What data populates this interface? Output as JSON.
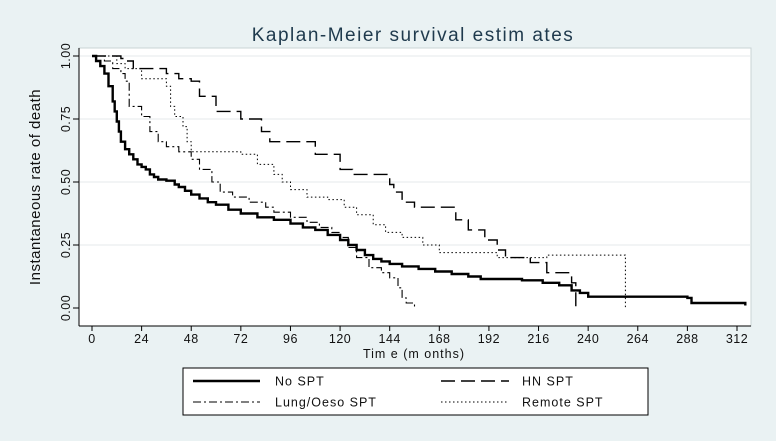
{
  "chart_data": {
    "type": "line",
    "step": true,
    "title": "Kaplan-Meier survival estim ates",
    "xlabel": "Tim e (m onths)",
    "ylabel": "Instantaneous rate of death",
    "xlim": [
      0,
      318
    ],
    "ylim": [
      0,
      1
    ],
    "xticks": [
      0,
      24,
      48,
      72,
      96,
      120,
      144,
      168,
      192,
      216,
      240,
      264,
      288,
      312
    ],
    "yticks": [
      0,
      0.25,
      0.5,
      0.75,
      1
    ],
    "ytick_labels": [
      "0.00",
      "0.25",
      "0.50",
      "0.75",
      "1.00"
    ],
    "grid": "horizontal",
    "legend_position": "bottom",
    "series": [
      {
        "name": "No SPT",
        "style": "solid",
        "points": [
          [
            0,
            1
          ],
          [
            2,
            0.98
          ],
          [
            4,
            0.96
          ],
          [
            6,
            0.93
          ],
          [
            8,
            0.88
          ],
          [
            10,
            0.82
          ],
          [
            11,
            0.78
          ],
          [
            12,
            0.74
          ],
          [
            13,
            0.7
          ],
          [
            14,
            0.66
          ],
          [
            16,
            0.63
          ],
          [
            18,
            0.61
          ],
          [
            20,
            0.59
          ],
          [
            22,
            0.57
          ],
          [
            24,
            0.56
          ],
          [
            26,
            0.55
          ],
          [
            28,
            0.53
          ],
          [
            30,
            0.52
          ],
          [
            32,
            0.51
          ],
          [
            36,
            0.505
          ],
          [
            40,
            0.49
          ],
          [
            42,
            0.48
          ],
          [
            45,
            0.465
          ],
          [
            48,
            0.45
          ],
          [
            52,
            0.435
          ],
          [
            56,
            0.42
          ],
          [
            60,
            0.41
          ],
          [
            66,
            0.39
          ],
          [
            72,
            0.375
          ],
          [
            80,
            0.36
          ],
          [
            88,
            0.35
          ],
          [
            96,
            0.335
          ],
          [
            102,
            0.32
          ],
          [
            108,
            0.31
          ],
          [
            114,
            0.29
          ],
          [
            120,
            0.27
          ],
          [
            124,
            0.25
          ],
          [
            128,
            0.23
          ],
          [
            132,
            0.21
          ],
          [
            136,
            0.195
          ],
          [
            140,
            0.185
          ],
          [
            144,
            0.175
          ],
          [
            150,
            0.165
          ],
          [
            158,
            0.155
          ],
          [
            166,
            0.145
          ],
          [
            174,
            0.135
          ],
          [
            182,
            0.125
          ],
          [
            188,
            0.115
          ],
          [
            208,
            0.11
          ],
          [
            218,
            0.1
          ],
          [
            226,
            0.09
          ],
          [
            232,
            0.07
          ],
          [
            236,
            0.06
          ],
          [
            240,
            0.045
          ],
          [
            288,
            0.04
          ],
          [
            290,
            0.02
          ],
          [
            316,
            0.01
          ]
        ]
      },
      {
        "name": "HN SPT",
        "style": "longdash",
        "points": [
          [
            0,
            1
          ],
          [
            14,
            0.99
          ],
          [
            16,
            0.98
          ],
          [
            20,
            0.95
          ],
          [
            36,
            0.93
          ],
          [
            42,
            0.91
          ],
          [
            48,
            0.9
          ],
          [
            52,
            0.84
          ],
          [
            60,
            0.78
          ],
          [
            72,
            0.75
          ],
          [
            82,
            0.7
          ],
          [
            86,
            0.66
          ],
          [
            108,
            0.61
          ],
          [
            120,
            0.55
          ],
          [
            126,
            0.53
          ],
          [
            144,
            0.49
          ],
          [
            146,
            0.46
          ],
          [
            150,
            0.42
          ],
          [
            156,
            0.4
          ],
          [
            176,
            0.35
          ],
          [
            182,
            0.31
          ],
          [
            190,
            0.27
          ],
          [
            196,
            0.23
          ],
          [
            200,
            0.2
          ],
          [
            212,
            0.18
          ],
          [
            220,
            0.14
          ],
          [
            232,
            0.1
          ],
          [
            234,
            0.0
          ]
        ]
      },
      {
        "name": "Lung/Oeso SPT",
        "style": "dashdot",
        "points": [
          [
            0,
            1
          ],
          [
            6,
            0.98
          ],
          [
            10,
            0.95
          ],
          [
            14,
            0.93
          ],
          [
            16,
            0.9
          ],
          [
            18,
            0.8
          ],
          [
            24,
            0.76
          ],
          [
            28,
            0.7
          ],
          [
            32,
            0.66
          ],
          [
            36,
            0.64
          ],
          [
            42,
            0.62
          ],
          [
            48,
            0.59
          ],
          [
            52,
            0.55
          ],
          [
            58,
            0.5
          ],
          [
            62,
            0.46
          ],
          [
            68,
            0.44
          ],
          [
            76,
            0.42
          ],
          [
            84,
            0.4
          ],
          [
            88,
            0.38
          ],
          [
            96,
            0.36
          ],
          [
            104,
            0.34
          ],
          [
            110,
            0.32
          ],
          [
            116,
            0.3
          ],
          [
            120,
            0.28
          ],
          [
            124,
            0.24
          ],
          [
            128,
            0.2
          ],
          [
            134,
            0.16
          ],
          [
            140,
            0.14
          ],
          [
            144,
            0.12
          ],
          [
            148,
            0.08
          ],
          [
            150,
            0.04
          ],
          [
            152,
            0.02
          ],
          [
            156,
            0.0
          ]
        ]
      },
      {
        "name": "Remote SPT",
        "style": "dotted",
        "points": [
          [
            0,
            1
          ],
          [
            12,
            0.97
          ],
          [
            16,
            0.95
          ],
          [
            24,
            0.91
          ],
          [
            36,
            0.88
          ],
          [
            38,
            0.8
          ],
          [
            40,
            0.76
          ],
          [
            44,
            0.72
          ],
          [
            46,
            0.66
          ],
          [
            48,
            0.62
          ],
          [
            72,
            0.61
          ],
          [
            80,
            0.57
          ],
          [
            88,
            0.53
          ],
          [
            92,
            0.5
          ],
          [
            96,
            0.47
          ],
          [
            104,
            0.44
          ],
          [
            114,
            0.43
          ],
          [
            122,
            0.4
          ],
          [
            128,
            0.37
          ],
          [
            136,
            0.33
          ],
          [
            142,
            0.3
          ],
          [
            150,
            0.28
          ],
          [
            160,
            0.25
          ],
          [
            168,
            0.22
          ],
          [
            196,
            0.2
          ],
          [
            220,
            0.21
          ],
          [
            240,
            0.21
          ],
          [
            256,
            0.21
          ],
          [
            258,
            0.0
          ]
        ]
      }
    ]
  }
}
